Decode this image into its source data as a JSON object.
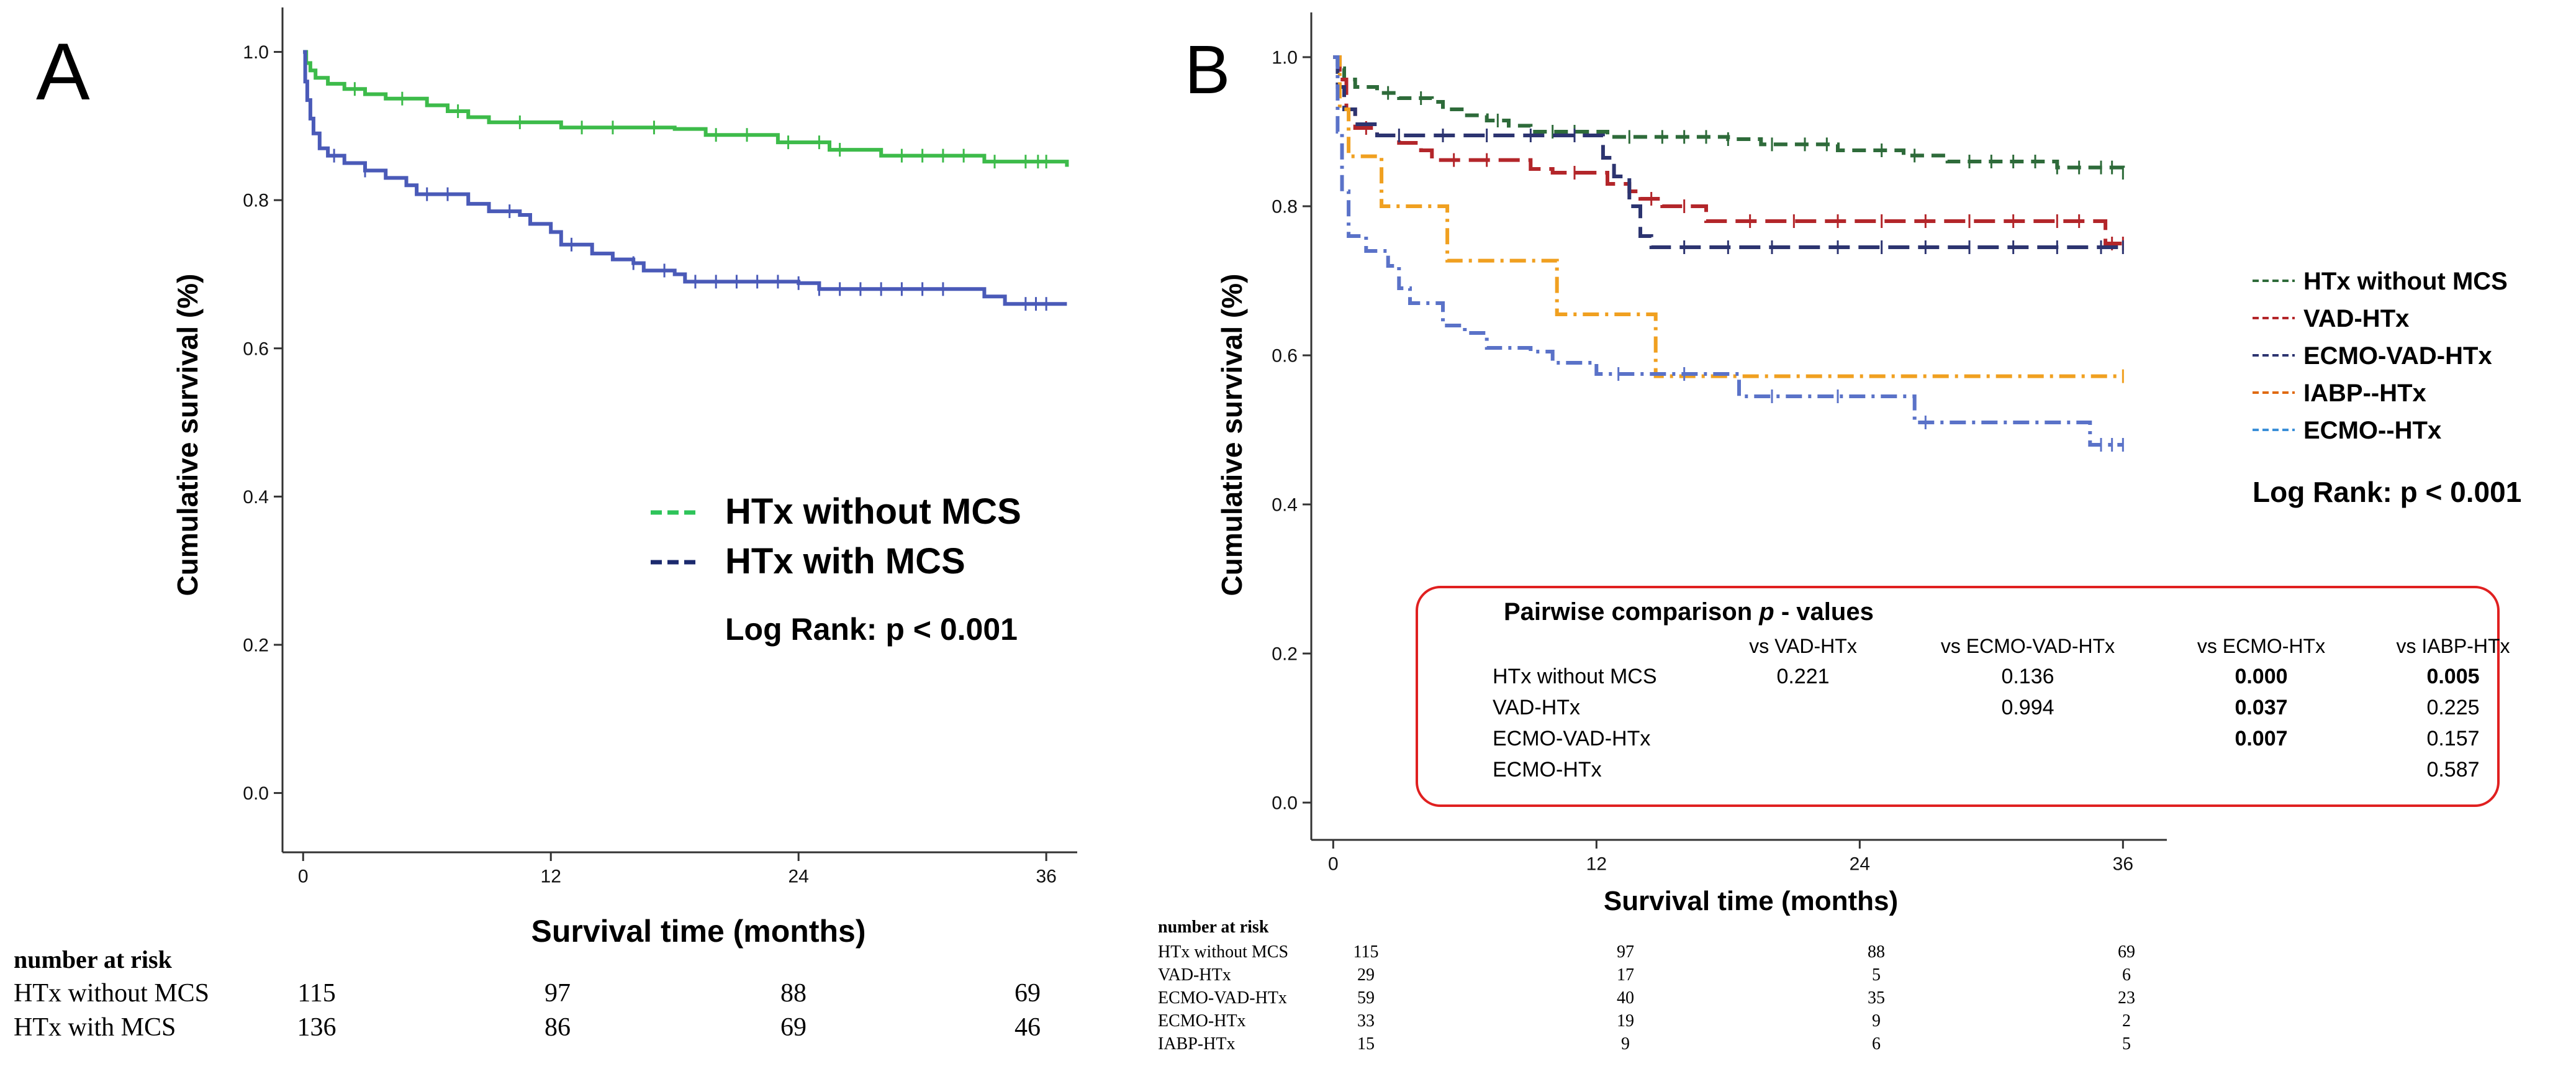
{
  "colors": {
    "htx_without_mcs_a": "#3dbb4a",
    "htx_with_mcs_a": "#4a5ab8",
    "legend_without_a": "#2ec45a",
    "legend_with_a": "#1c2a6e",
    "htx_without_mcs_b": "#2e6b3a",
    "vad_htx": "#b3262a",
    "ecmo_vad_htx": "#2c3470",
    "iabp_htx": "#f0a020",
    "ecmo_htx": "#5a72c8",
    "legend_ecmo_htx": "#3a8fd8",
    "legend_iabp_htx": "#e06a10",
    "box_border": "#e02020",
    "axis": "#333333"
  },
  "chart_data": [
    {
      "panel": "A",
      "type": "line",
      "title": "",
      "xlabel": "Survival time (months)",
      "ylabel": "Cumulative survival (%)",
      "xlim": [
        -1,
        37.5
      ],
      "ylim": [
        -0.08,
        1.06
      ],
      "xticks": [
        "0",
        "12",
        "24",
        "36"
      ],
      "yticks": [
        "0.0",
        "0.2",
        "0.4",
        "0.6",
        "0.8",
        "1.0"
      ],
      "legend": [
        "HTx without MCS",
        "HTx with MCS"
      ],
      "annotation": "Log Rank: p < 0.001",
      "series": [
        {
          "name": "HTx without MCS",
          "color_key": "htx_without_mcs_a",
          "points": [
            [
              0,
              1.0
            ],
            [
              0.15,
              0.985
            ],
            [
              0.35,
              0.975
            ],
            [
              0.6,
              0.965
            ],
            [
              1.2,
              0.957
            ],
            [
              2,
              0.95
            ],
            [
              3,
              0.943
            ],
            [
              4,
              0.937
            ],
            [
              5.5,
              0.937
            ],
            [
              6,
              0.928
            ],
            [
              7,
              0.92
            ],
            [
              8,
              0.912
            ],
            [
              9,
              0.905
            ],
            [
              12,
              0.905
            ],
            [
              12.5,
              0.898
            ],
            [
              18,
              0.896
            ],
            [
              19.5,
              0.888
            ],
            [
              23,
              0.878
            ],
            [
              25,
              0.878
            ],
            [
              25.5,
              0.868
            ],
            [
              28,
              0.86
            ],
            [
              33,
              0.852
            ],
            [
              37,
              0.845
            ]
          ],
          "censors": [
            2.5,
            4.8,
            7.5,
            10.5,
            13.5,
            15,
            17,
            20,
            21.5,
            23.5,
            25,
            26,
            29,
            30,
            31,
            32,
            33.5,
            35,
            35.6,
            36
          ]
        },
        {
          "name": "HTx with MCS",
          "color_key": "htx_with_mcs_a",
          "points": [
            [
              0,
              1.0
            ],
            [
              0.1,
              0.96
            ],
            [
              0.2,
              0.935
            ],
            [
              0.35,
              0.91
            ],
            [
              0.5,
              0.89
            ],
            [
              0.8,
              0.87
            ],
            [
              1.2,
              0.86
            ],
            [
              2,
              0.85
            ],
            [
              3,
              0.84
            ],
            [
              4,
              0.83
            ],
            [
              5,
              0.82
            ],
            [
              5.5,
              0.808
            ],
            [
              7.5,
              0.808
            ],
            [
              8,
              0.795
            ],
            [
              9,
              0.785
            ],
            [
              10.5,
              0.78
            ],
            [
              11,
              0.768
            ],
            [
              12,
              0.757
            ],
            [
              12.5,
              0.74
            ],
            [
              14,
              0.728
            ],
            [
              15,
              0.72
            ],
            [
              16,
              0.715
            ],
            [
              16.5,
              0.705
            ],
            [
              18,
              0.7
            ],
            [
              18.5,
              0.69
            ],
            [
              22,
              0.69
            ],
            [
              24,
              0.688
            ],
            [
              25,
              0.68
            ],
            [
              28,
              0.68
            ],
            [
              32,
              0.68
            ],
            [
              33,
              0.67
            ],
            [
              34,
              0.66
            ],
            [
              37,
              0.66
            ]
          ],
          "censors": [
            1.5,
            3,
            6,
            7,
            10,
            13,
            16,
            17.5,
            19,
            20,
            21,
            22,
            23,
            24,
            25,
            26,
            27,
            28,
            29,
            30,
            31,
            35,
            35.5,
            36
          ]
        }
      ],
      "risk_table": {
        "title": "number at risk",
        "rows": [
          {
            "label": "HTx without MCS",
            "values": [
              "115",
              "97",
              "88",
              "69"
            ]
          },
          {
            "label": "HTx with MCS",
            "values": [
              "136",
              "86",
              "69",
              "46"
            ]
          }
        ]
      }
    },
    {
      "panel": "B",
      "type": "line",
      "title": "",
      "xlabel": "Survival time (months)",
      "ylabel": "Cumulative survival (%)",
      "xlim": [
        -1,
        38
      ],
      "ylim": [
        -0.05,
        1.06
      ],
      "xticks": [
        "0",
        "12",
        "24",
        "36"
      ],
      "yticks": [
        "0.0",
        "0.2",
        "0.4",
        "0.6",
        "0.8",
        "1.0"
      ],
      "legend": [
        "HTx without MCS",
        "VAD-HTx",
        "ECMO-VAD-HTx",
        "IABP--HTx",
        "ECMO--HTx"
      ],
      "annotation": "Log Rank: p < 0.001",
      "series": [
        {
          "name": "HTx without MCS",
          "color_key": "htx_without_mcs_b",
          "dash": "dash",
          "points": [
            [
              0,
              1.0
            ],
            [
              0.2,
              0.985
            ],
            [
              0.5,
              0.97
            ],
            [
              1,
              0.96
            ],
            [
              2,
              0.952
            ],
            [
              3,
              0.945
            ],
            [
              4.5,
              0.94
            ],
            [
              5,
              0.93
            ],
            [
              6,
              0.922
            ],
            [
              7,
              0.915
            ],
            [
              8,
              0.908
            ],
            [
              9,
              0.9
            ],
            [
              12,
              0.9
            ],
            [
              12.5,
              0.893
            ],
            [
              18,
              0.89
            ],
            [
              19.5,
              0.883
            ],
            [
              23,
              0.875
            ],
            [
              26,
              0.868
            ],
            [
              28,
              0.86
            ],
            [
              33,
              0.852
            ],
            [
              36,
              0.845
            ]
          ],
          "censors": [
            2.5,
            4,
            7.5,
            10,
            11,
            13.5,
            15,
            16,
            17,
            18,
            20,
            21.5,
            22.5,
            25,
            26.5,
            29,
            30,
            31,
            32,
            33,
            34,
            35,
            35.5,
            36
          ]
        },
        {
          "name": "VAD-HTx",
          "color_key": "vad_htx",
          "dash": "longdash",
          "points": [
            [
              0,
              1.0
            ],
            [
              0.3,
              0.97
            ],
            [
              0.6,
              0.93
            ],
            [
              1,
              0.905
            ],
            [
              2,
              0.895
            ],
            [
              3,
              0.885
            ],
            [
              4,
              0.875
            ],
            [
              4.5,
              0.862
            ],
            [
              8,
              0.862
            ],
            [
              9,
              0.85
            ],
            [
              10,
              0.845
            ],
            [
              12,
              0.845
            ],
            [
              12.5,
              0.83
            ],
            [
              13.5,
              0.82
            ],
            [
              14,
              0.81
            ],
            [
              15,
              0.8
            ],
            [
              17,
              0.78
            ],
            [
              25,
              0.78
            ],
            [
              35,
              0.78
            ],
            [
              35.2,
              0.75
            ],
            [
              36,
              0.75
            ]
          ],
          "censors": [
            1.5,
            5.5,
            7,
            11,
            14.5,
            16,
            19,
            21,
            23,
            25,
            27,
            29,
            31,
            33,
            34,
            35.5,
            36
          ]
        },
        {
          "name": "ECMO-VAD-HTx",
          "color_key": "ecmo_vad_htx",
          "dash": "longdash",
          "points": [
            [
              0,
              1.0
            ],
            [
              0.2,
              0.96
            ],
            [
              0.5,
              0.93
            ],
            [
              1,
              0.91
            ],
            [
              2,
              0.895
            ],
            [
              12,
              0.895
            ],
            [
              12.3,
              0.865
            ],
            [
              12.8,
              0.84
            ],
            [
              13.5,
              0.8
            ],
            [
              14,
              0.76
            ],
            [
              14.5,
              0.745
            ],
            [
              24,
              0.745
            ],
            [
              36,
              0.745
            ]
          ],
          "censors": [
            3,
            5,
            7,
            9,
            11,
            16,
            18,
            20,
            23,
            25,
            27,
            29,
            31,
            33,
            35,
            36
          ]
        },
        {
          "name": "IABP--HTx",
          "color_key": "iabp_htx",
          "dash": "dashdot",
          "points": [
            [
              0,
              1.0
            ],
            [
              0.3,
              0.93
            ],
            [
              0.7,
              0.867
            ],
            [
              2,
              0.867
            ],
            [
              2.2,
              0.8
            ],
            [
              5,
              0.8
            ],
            [
              5.2,
              0.727
            ],
            [
              10,
              0.727
            ],
            [
              10.2,
              0.655
            ],
            [
              14.5,
              0.655
            ],
            [
              14.7,
              0.572
            ],
            [
              24,
              0.572
            ],
            [
              36,
              0.572
            ]
          ],
          "censors": [
            36
          ]
        },
        {
          "name": "ECMO--HTx",
          "color_key": "ecmo_htx",
          "dash": "dashdot",
          "points": [
            [
              0,
              1.0
            ],
            [
              0.2,
              0.9
            ],
            [
              0.4,
              0.82
            ],
            [
              0.7,
              0.76
            ],
            [
              1.5,
              0.74
            ],
            [
              2.5,
              0.72
            ],
            [
              3,
              0.69
            ],
            [
              3.5,
              0.67
            ],
            [
              5,
              0.64
            ],
            [
              6,
              0.63
            ],
            [
              7,
              0.61
            ],
            [
              9,
              0.605
            ],
            [
              10,
              0.59
            ],
            [
              12,
              0.575
            ],
            [
              18,
              0.575
            ],
            [
              18.5,
              0.545
            ],
            [
              20,
              0.545
            ],
            [
              24,
              0.545
            ],
            [
              26.5,
              0.51
            ],
            [
              30,
              0.51
            ],
            [
              34,
              0.51
            ],
            [
              34.5,
              0.48
            ],
            [
              36,
              0.48
            ]
          ],
          "censors": [
            13,
            16,
            20,
            23,
            27,
            35,
            35.5,
            36
          ]
        }
      ],
      "pairwise_table": {
        "title": "Pairwise comparison",
        "title_italic": "p",
        "title_suffix": "- values",
        "columns": [
          "vs VAD-HTx",
          "vs ECMO-VAD-HTx",
          "vs ECMO-HTx",
          "vs IABP-HTx"
        ],
        "rows": [
          {
            "label": "HTx without MCS",
            "cells": [
              "0.221",
              "0.136",
              "0.000",
              "0.005"
            ],
            "bold": [
              false,
              false,
              true,
              true
            ]
          },
          {
            "label": "VAD-HTx",
            "cells": [
              "",
              "0.994",
              "0.037",
              "0.225"
            ],
            "bold": [
              false,
              false,
              true,
              false
            ]
          },
          {
            "label": "ECMO-VAD-HTx",
            "cells": [
              "",
              "",
              "0.007",
              "0.157"
            ],
            "bold": [
              false,
              false,
              true,
              false
            ]
          },
          {
            "label": "ECMO-HTx",
            "cells": [
              "",
              "",
              "",
              "0.587"
            ],
            "bold": [
              false,
              false,
              false,
              false
            ]
          }
        ]
      },
      "risk_table": {
        "title": "number at risk",
        "rows": [
          {
            "label": "HTx without MCS",
            "values": [
              "115",
              "97",
              "88",
              "69"
            ]
          },
          {
            "label": "VAD-HTx",
            "values": [
              "29",
              "17",
              "5",
              "6"
            ]
          },
          {
            "label": "ECMO-VAD-HTx",
            "values": [
              "59",
              "40",
              "35",
              "23"
            ]
          },
          {
            "label": "ECMO-HTx",
            "values": [
              "33",
              "19",
              "9",
              "2"
            ]
          },
          {
            "label": "IABP-HTx",
            "values": [
              "15",
              "9",
              "6",
              "5"
            ]
          }
        ]
      }
    }
  ],
  "panel_labels": {
    "a": "A",
    "b": "B"
  }
}
